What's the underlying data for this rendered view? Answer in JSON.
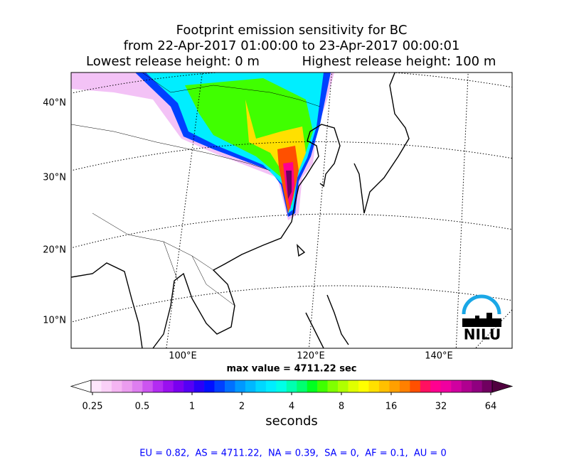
{
  "title": {
    "line1": "Footprint emission sensitivity for BC",
    "line2": "from 22-Apr-2017 01:00:00 to 23-Apr-2017 00:00:01",
    "line3_left": "Lowest release height: 0 m",
    "line3_right": "Highest release height: 100 m"
  },
  "map": {
    "lat_labels": [
      "40°N",
      "30°N",
      "20°N",
      "10°N"
    ],
    "lon_labels": [
      "100°E",
      "120°E",
      "140°E"
    ],
    "max_value": "max value = 4711.22 sec",
    "logo": "NILU"
  },
  "colorbar": {
    "ticks": [
      "0.25",
      "0.5",
      "1",
      "2",
      "4",
      "8",
      "16",
      "32",
      "64"
    ],
    "label": "seconds",
    "colors": [
      "#fde6fb",
      "#fad0f7",
      "#f5b5f2",
      "#eb9cef",
      "#de7ef0",
      "#cc55f0",
      "#b32cf2",
      "#9a10f0",
      "#7a00f0",
      "#5500f5",
      "#2a00f8",
      "#0010ff",
      "#0040ff",
      "#0070ff",
      "#0098ff",
      "#00b8ff",
      "#00d8ff",
      "#00eeff",
      "#00ffe8",
      "#00ffb0",
      "#00ff70",
      "#00ff20",
      "#40ff00",
      "#80ff00",
      "#b0ff00",
      "#e0ff00",
      "#ffff00",
      "#ffe000",
      "#ffc000",
      "#ffa000",
      "#ff8000",
      "#ff5000",
      "#ff1060",
      "#ff0090",
      "#f000a0",
      "#d000a0",
      "#b00090",
      "#900080",
      "#700060"
    ],
    "under_color": "#ffffff",
    "over_color": "#50003f"
  },
  "footer": "EU = 0.82,  AS = 4711.22,  NA = 0.39,  SA = 0,  AF = 0.1,  AU = 0"
}
